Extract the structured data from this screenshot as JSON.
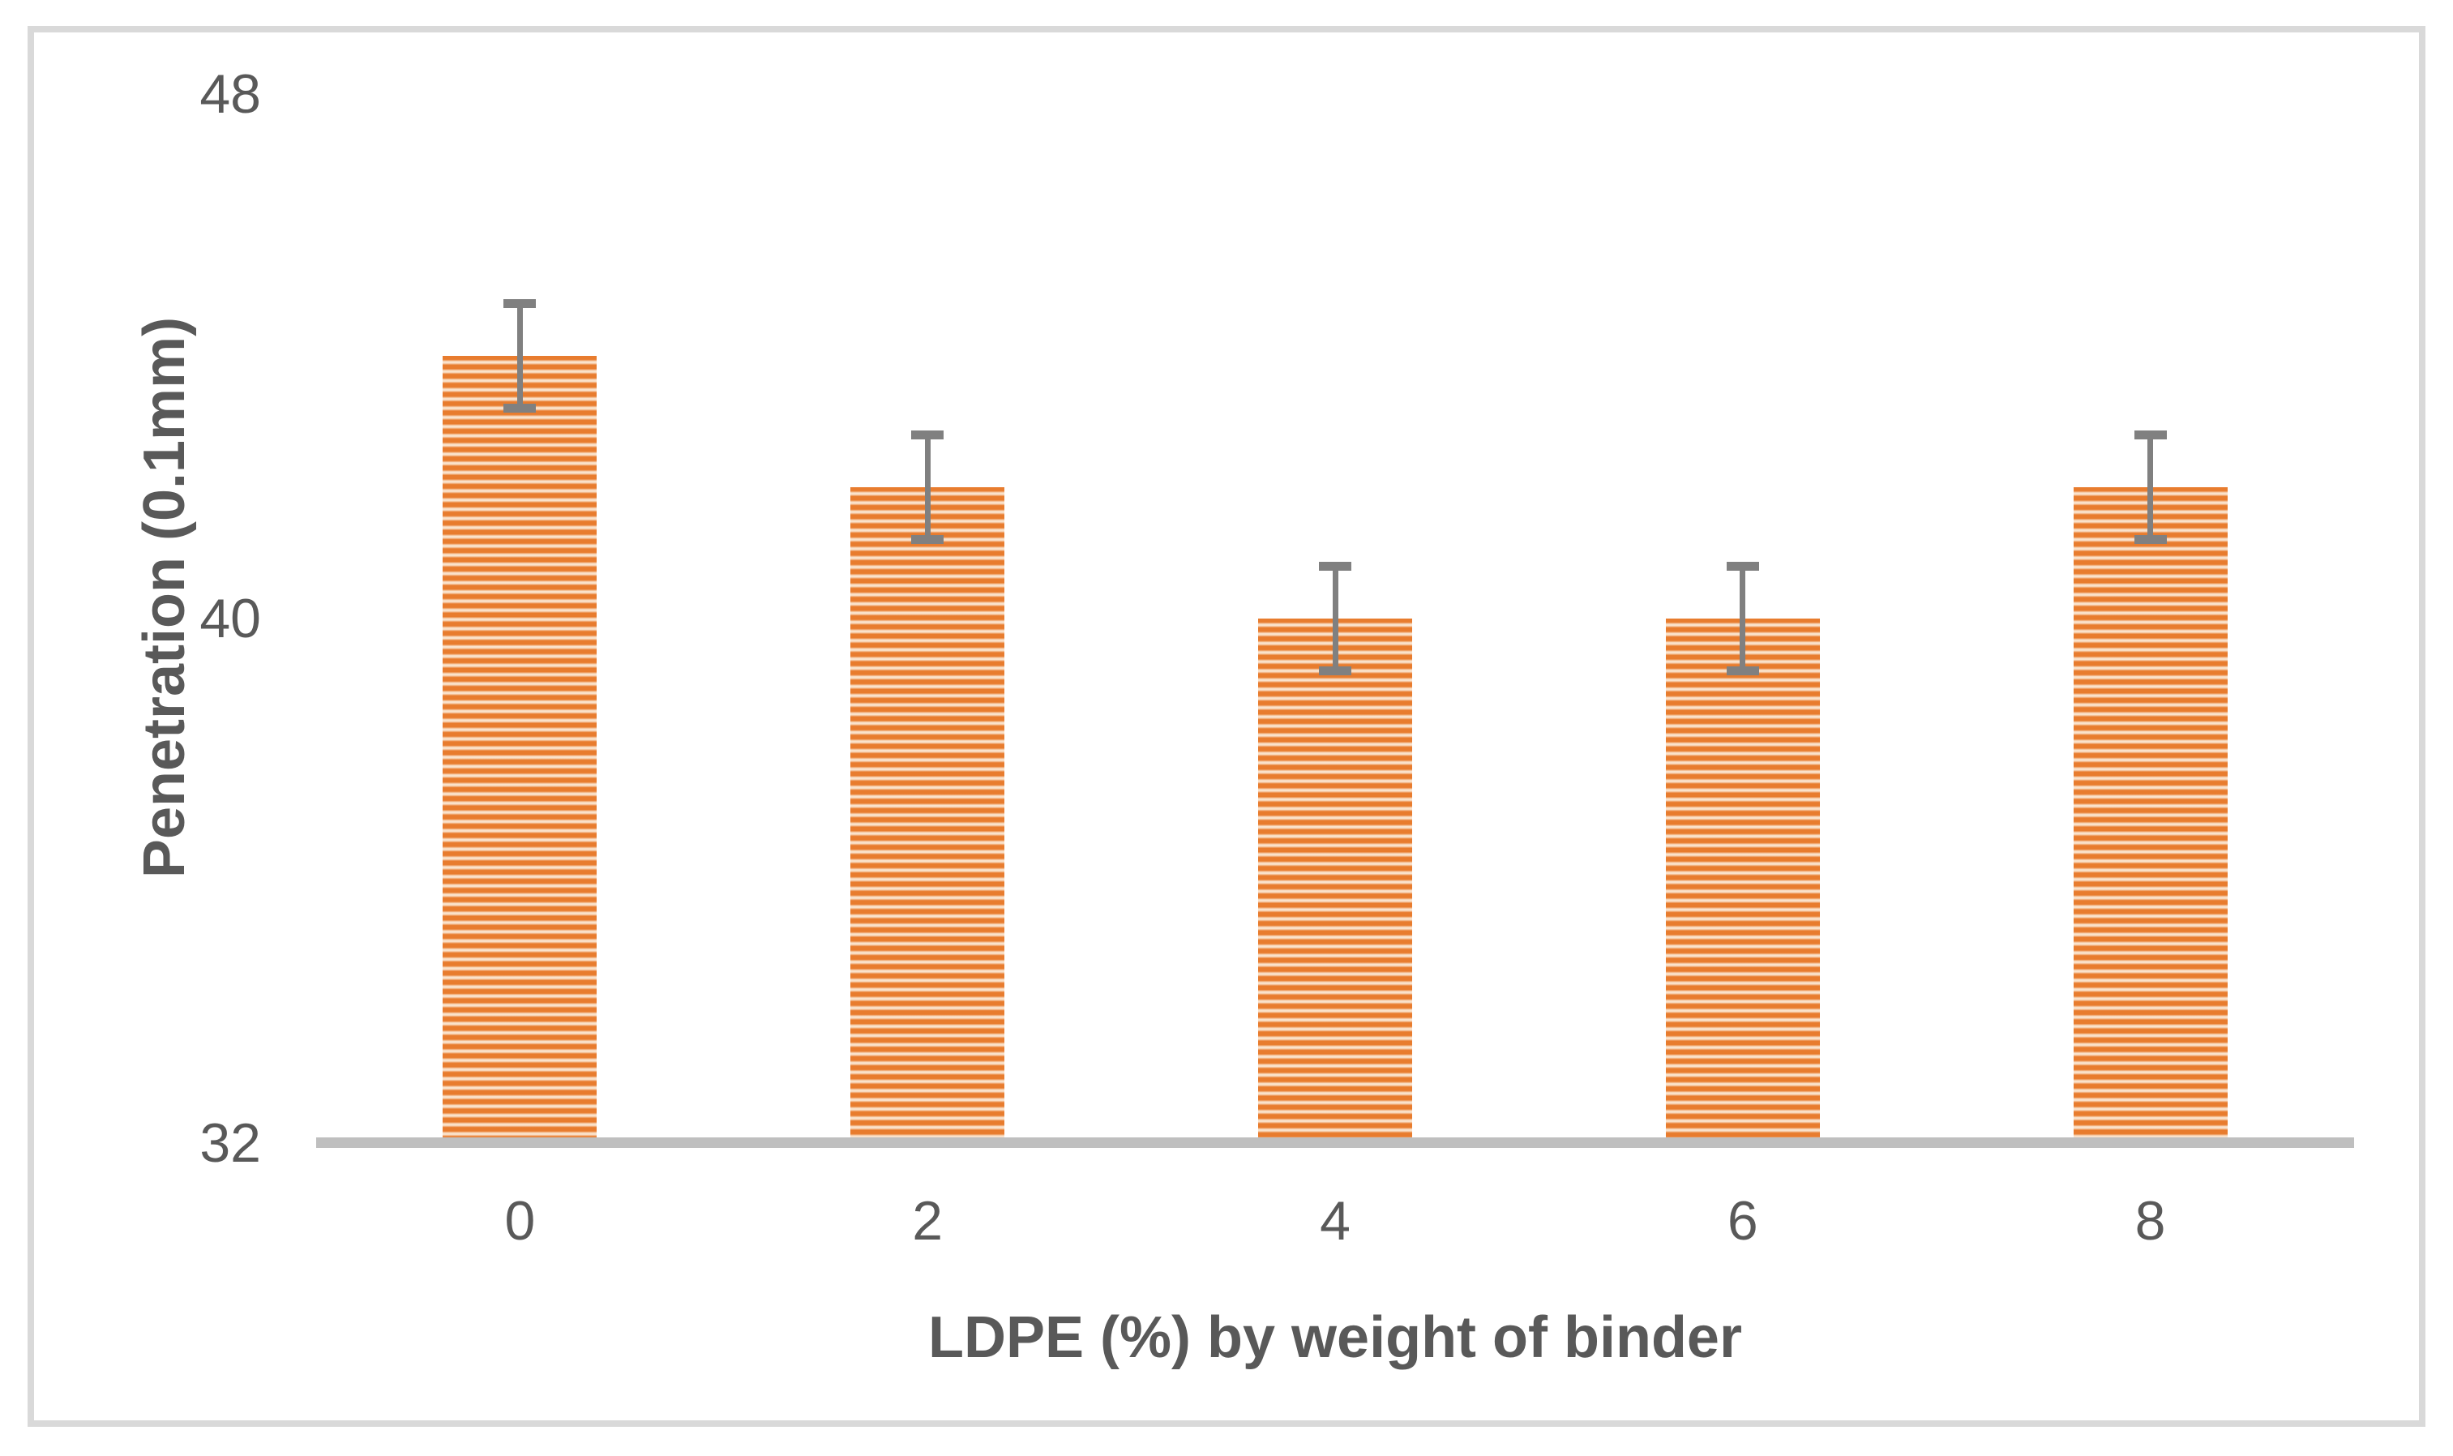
{
  "figure": {
    "background_color": "#FFFFFF",
    "border_color": "#D9D9D9"
  },
  "chart_data": {
    "type": "bar",
    "title": "",
    "categories": [
      "0",
      "2",
      "4",
      "6",
      "8"
    ],
    "values": [
      44,
      42,
      40,
      40,
      42
    ],
    "error_bars": [
      0.8,
      0.8,
      0.8,
      0.8,
      0.8
    ],
    "xlabel": "LDPE (%) by weight of binder",
    "ylabel": "Penetration (0.1mm)",
    "ylim": [
      32,
      48
    ],
    "yticks": [
      32,
      40,
      48
    ],
    "grid": false,
    "legend": "none",
    "bar_fill": {
      "pattern": "horizontal-stripes",
      "stripe_color": "#E87C2E",
      "gap_color": "#FAE2CB"
    },
    "error_bar_color": "#808080",
    "axis_line_color": "#BFBFBF",
    "tick_label_color": "#595959",
    "axis_title_color": "#595959"
  }
}
